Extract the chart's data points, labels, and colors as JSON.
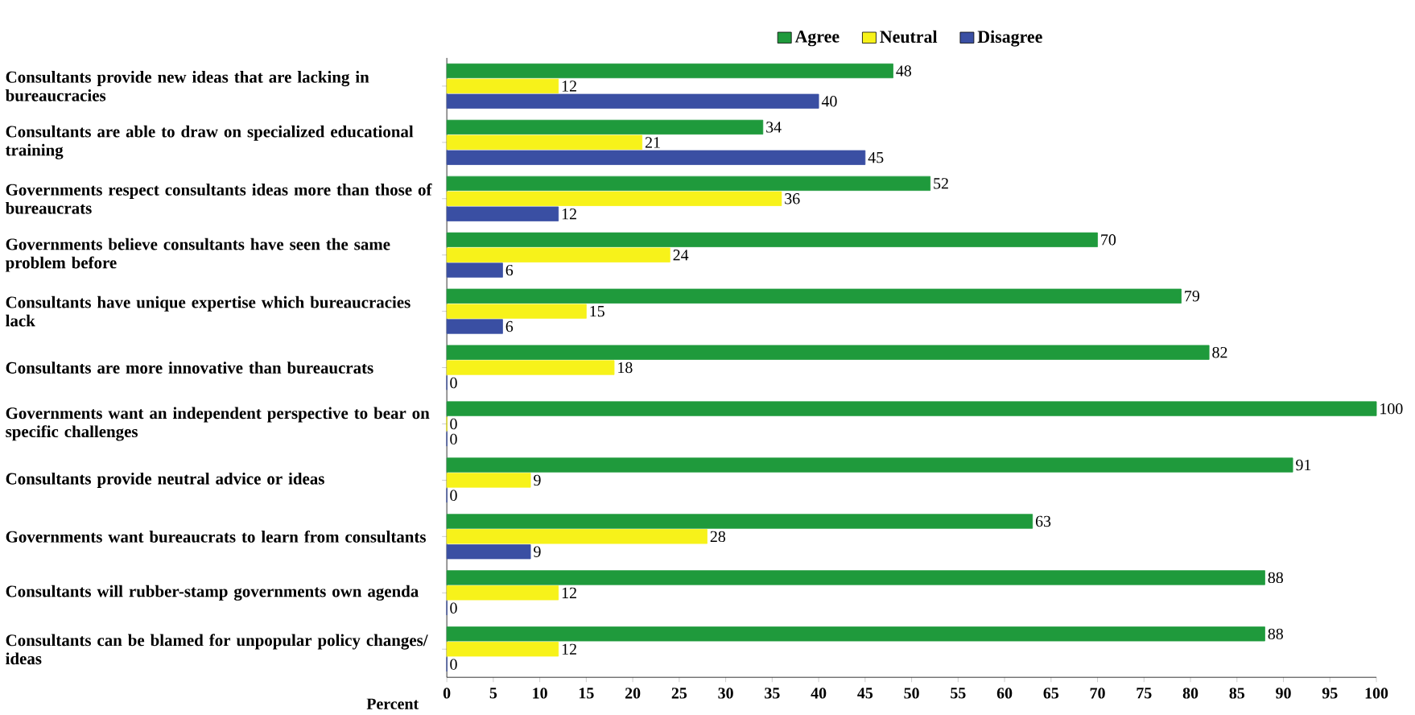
{
  "chart_data": {
    "type": "bar",
    "orientation": "horizontal",
    "categories": [
      "Consultants provide new ideas that are lacking  in bureaucracies",
      "Consultants are able to draw on specialized educational training",
      "Governments respect consultants ideas more than those of bureaucrats",
      "Governments believe consultants have seen the same problem before",
      "Consultants have unique expertise which bureaucracies lack",
      "Consultants are more innovative than bureaucrats",
      "Governments want an independent perspective to bear on specific challenges",
      "Consultants provide neutral advice or ideas",
      "Governments want bureaucrats to learn from consultants",
      "Consultants will rubber-stamp governments own agenda",
      "Consultants can be blamed for unpopular policy changes/ ideas"
    ],
    "series": [
      {
        "name": "Agree",
        "color": "#1f9a3c",
        "values": [
          48,
          34,
          52,
          70,
          79,
          82,
          100,
          91,
          63,
          88,
          88
        ]
      },
      {
        "name": "Neutral",
        "color": "#f7f21a",
        "values": [
          12,
          21,
          36,
          24,
          15,
          18,
          0,
          9,
          28,
          12,
          12
        ]
      },
      {
        "name": "Disagree",
        "color": "#3a4fa3",
        "values": [
          40,
          45,
          12,
          6,
          6,
          0,
          0,
          0,
          9,
          0,
          0
        ]
      }
    ],
    "xlabel": "Percent",
    "xlim": [
      0,
      100
    ],
    "xticks": [
      0,
      5,
      10,
      15,
      20,
      25,
      30,
      35,
      40,
      45,
      50,
      55,
      60,
      65,
      70,
      75,
      80,
      85,
      90,
      95,
      100
    ],
    "data_labels": true,
    "legend": "top",
    "grid": false
  }
}
